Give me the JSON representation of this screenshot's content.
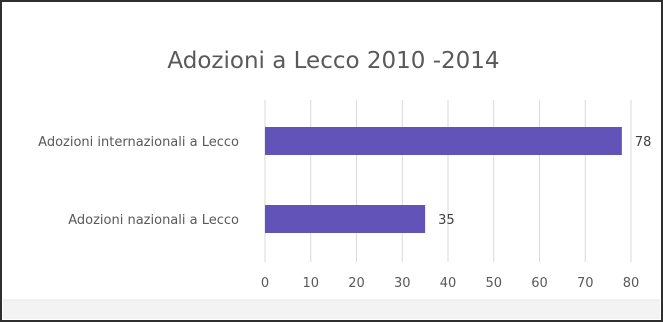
{
  "chart_data": {
    "type": "bar",
    "orientation": "horizontal",
    "title": "Adozioni  a Lecco 2010 -2014",
    "categories": [
      "Adozioni internazionali a Lecco",
      "Adozioni nazionali a Lecco"
    ],
    "values": [
      78,
      35
    ],
    "data_labels": [
      "78",
      "35"
    ],
    "xlim": [
      0,
      80
    ],
    "x_ticks": [
      "0",
      "10",
      "20",
      "30",
      "40",
      "50",
      "60",
      "70",
      "80"
    ],
    "grid": true,
    "legend": "none",
    "colors": {
      "bar": "#6153b8",
      "grid": "#d9d9d9",
      "text": "#595959"
    }
  }
}
